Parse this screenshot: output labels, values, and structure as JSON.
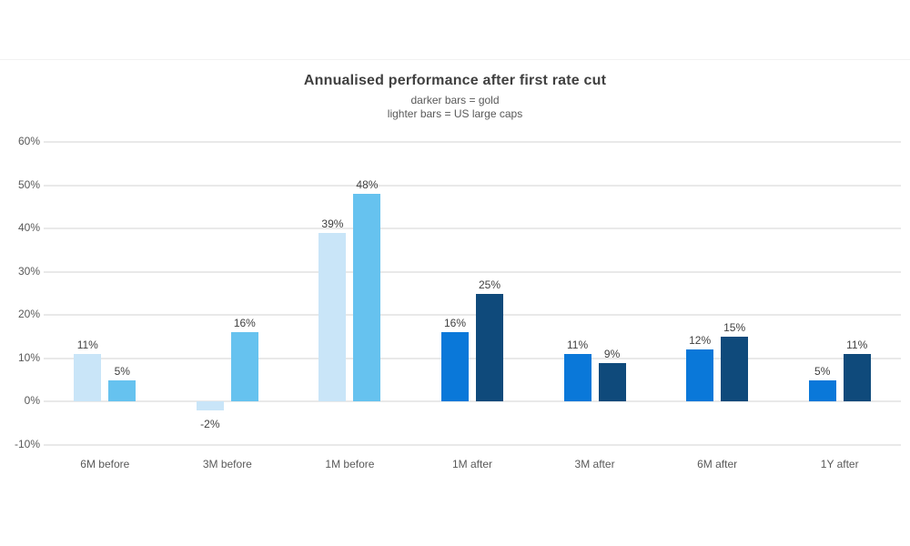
{
  "chart_data": {
    "type": "bar",
    "title": "Annualised performance after first rate cut",
    "subtitle_lines": [
      "darker bars = gold",
      "lighter bars = US large caps"
    ],
    "categories": [
      "6M before",
      "3M before",
      "1M before",
      "1M after",
      "3M after",
      "6M after",
      "1Y after"
    ],
    "series": [
      {
        "name": "US large caps",
        "legend_hint": "lighter bars",
        "values": [
          11,
          -2,
          39,
          16,
          11,
          12,
          5
        ],
        "bar_colors": [
          "#C9E5F8",
          "#C9E5F8",
          "#C9E5F8",
          "#0A78D9",
          "#0A78D9",
          "#0A78D9",
          "#0A78D9"
        ]
      },
      {
        "name": "gold",
        "legend_hint": "darker bars",
        "values": [
          5,
          16,
          48,
          25,
          9,
          15,
          11
        ],
        "bar_colors": [
          "#66C2EF",
          "#66C2EF",
          "#66C2EF",
          "#0F4A7B",
          "#0F4A7B",
          "#0F4A7B",
          "#0F4A7B"
        ]
      }
    ],
    "value_label_format": "{v}%",
    "y_axis": {
      "ticks": [
        60,
        50,
        40,
        30,
        20,
        10,
        0,
        -10
      ],
      "tick_format": "{v}%",
      "ylim": [
        -10,
        60
      ]
    },
    "grid": "horizontal",
    "legend": "none (series identified in subtitle text)",
    "colors": {
      "us_large_caps_before": "#C9E5F8",
      "gold_before": "#66C2EF",
      "us_large_caps_after": "#0A78D9",
      "gold_after": "#0F4A7B",
      "gridline": "#E9E9E9",
      "title_text": "#404040",
      "subtitle_text": "#595959",
      "axis_text": "#595959",
      "value_label_text": "#404040"
    }
  }
}
